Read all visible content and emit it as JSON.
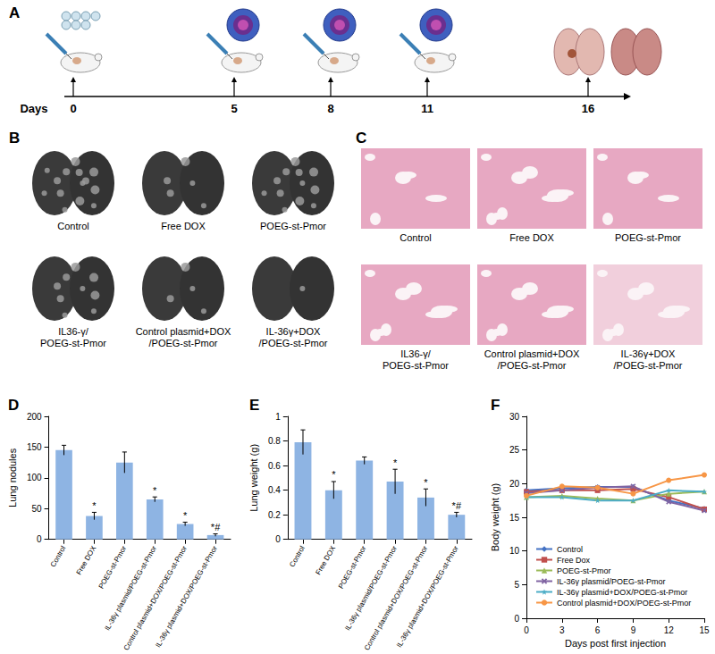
{
  "schematic": {
    "panel": "A",
    "axis_title": "Days",
    "days": [
      0,
      5,
      8,
      11,
      16
    ]
  },
  "photos": {
    "panel": "B",
    "captions": [
      "Control",
      "Free DOX",
      "POEG-st-Pmor",
      "IL36-γ/\nPOEG-st-Pmor",
      "Control plasmid+DOX\n/POEG-st-Pmor",
      "IL-36γ+DOX\n/POEG-st-Pmor"
    ]
  },
  "histology": {
    "panel": "C",
    "captions": [
      "Control",
      "Free DOX",
      "POEG-st-Pmor",
      "IL36-γ/\nPOEG-st-Pmor",
      "Control plasmid+DOX\n/POEG-st-Pmor",
      "IL-36γ+DOX\n/POEG-st-Pmor"
    ]
  },
  "chart_data": [
    {
      "panel": "D",
      "type": "bar",
      "y_label": "Lung nodules",
      "categories": [
        "Control",
        "Free DOX",
        "POEG-st-Pmor",
        "IL-36γ plasmid/POEG-st-Pmor",
        "Control plasmid+DOX/POEG-st-Pmor",
        "IL-36γ plasmid+DOX/POEG-st-Pmor"
      ],
      "values": [
        145,
        38,
        125,
        65,
        25,
        7
      ],
      "errors": [
        8,
        6,
        17,
        4,
        3,
        2
      ],
      "annotations": [
        {
          "category": "Free DOX",
          "text": "*"
        },
        {
          "category": "IL-36γ plasmid/POEG-st-Pmor",
          "text": "*"
        },
        {
          "category": "Control plasmid+DOX/POEG-st-Pmor",
          "text": "*"
        },
        {
          "category": "IL-36γ plasmid+DOX/POEG-st-Pmor",
          "text": "*#"
        }
      ],
      "color": "#8eb4e3",
      "ylim": [
        0,
        200
      ],
      "yticks": [
        0,
        50,
        100,
        150,
        200
      ],
      "grid": false
    },
    {
      "panel": "E",
      "type": "bar",
      "y_label": "Lung weight (g)",
      "categories": [
        "Control",
        "Free DOX",
        "POEG-st-Pmor",
        "IL-36γ plasmid/POEG-st-Pmor",
        "Control plasmid+DOX/POEG-st-Pmor",
        "IL-36γ plasmid+DOX/POEG-st-Pmor"
      ],
      "values": [
        0.79,
        0.4,
        0.64,
        0.47,
        0.34,
        0.2
      ],
      "errors": [
        0.1,
        0.07,
        0.03,
        0.1,
        0.07,
        0.02
      ],
      "annotations": [
        {
          "category": "Free DOX",
          "text": "*"
        },
        {
          "category": "IL-36γ plasmid/POEG-st-Pmor",
          "text": "*"
        },
        {
          "category": "Control plasmid+DOX/POEG-st-Pmor",
          "text": "*"
        },
        {
          "category": "IL-36γ plasmid+DOX/POEG-st-Pmor",
          "text": "*#"
        }
      ],
      "color": "#8eb4e3",
      "ylim": [
        0,
        1
      ],
      "yticks": [
        0,
        0.2,
        0.4,
        0.6,
        0.8,
        1
      ],
      "grid": false
    },
    {
      "panel": "F",
      "type": "line",
      "x_label": "Days post first injection",
      "y_label": "Body weight (g)",
      "x": [
        0,
        3,
        6,
        9,
        12,
        15
      ],
      "series": [
        {
          "name": "Control",
          "color": "#4472c4",
          "marker": "diamond",
          "values": [
            19,
            19.3,
            19.5,
            19.5,
            17.5,
            16.3
          ]
        },
        {
          "name": "Free Dox",
          "color": "#c0504d",
          "marker": "square",
          "values": [
            18.8,
            19,
            19,
            19.2,
            18,
            16.2
          ]
        },
        {
          "name": "POEG-st-Pmor",
          "color": "#9bbb59",
          "marker": "triangle",
          "values": [
            18,
            18.2,
            17.8,
            17.5,
            18.5,
            18.8
          ]
        },
        {
          "name": "IL-36γ plasmid/POEG-st-Pmor",
          "color": "#8064a2",
          "marker": "x",
          "values": [
            18.6,
            19,
            19.4,
            19.6,
            17.3,
            16
          ]
        },
        {
          "name": "IL-36γ plasmid+DOX/POEG-st-Pmor",
          "color": "#4bacc6",
          "marker": "star",
          "values": [
            18,
            18,
            17.5,
            17.5,
            19,
            18.8
          ]
        },
        {
          "name": "Control plasmid+DOX/POEG-st-Pmor",
          "color": "#f79646",
          "marker": "circle",
          "values": [
            18.2,
            19.6,
            19.4,
            18.5,
            20.5,
            21.3
          ]
        }
      ],
      "xlim": [
        0,
        15
      ],
      "xticks": [
        0,
        3,
        6,
        9,
        12,
        15
      ],
      "ylim": [
        0,
        30
      ],
      "yticks": [
        0,
        5,
        10,
        15,
        20,
        25,
        30
      ],
      "legend": "lower left",
      "grid": false
    }
  ]
}
